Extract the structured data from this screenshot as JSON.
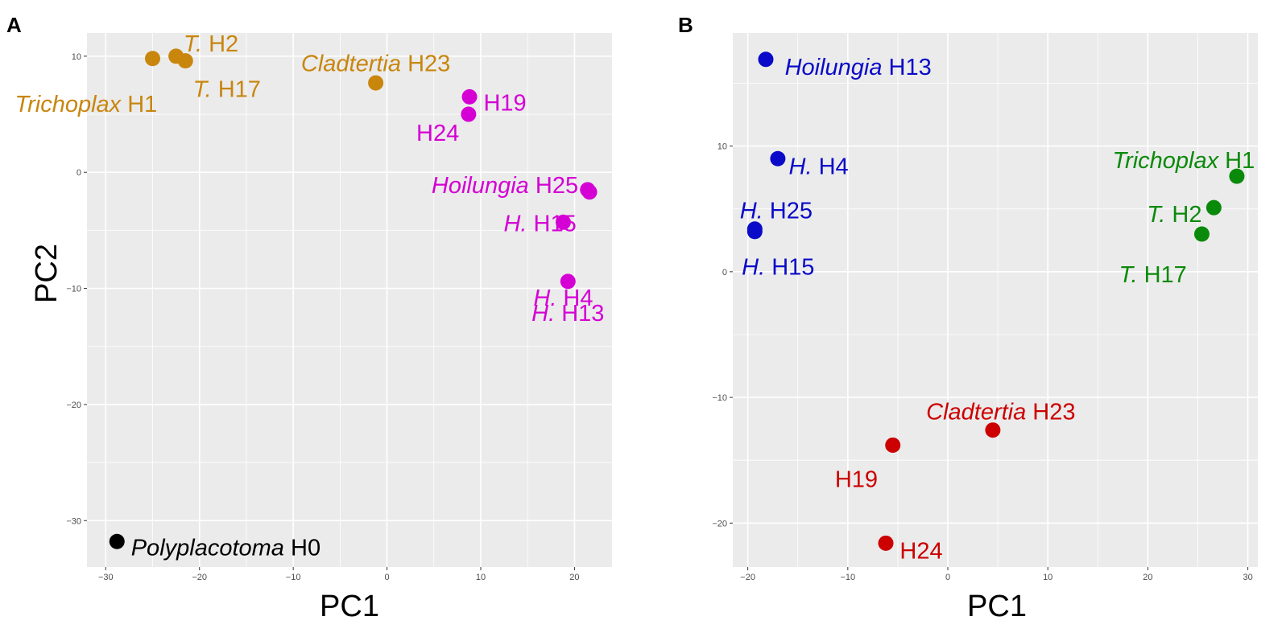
{
  "chart_data": [
    {
      "panel": "A",
      "type": "scatter",
      "xlabel": "PC1",
      "ylabel": "PC2",
      "xlim": [
        -32,
        24
      ],
      "ylim": [
        -34,
        12
      ],
      "xticks": [
        -30,
        -20,
        -10,
        0,
        10,
        20
      ],
      "yticks": [
        -30,
        -20,
        -10,
        0,
        10
      ],
      "points": [
        {
          "x": -25.0,
          "y": 9.8,
          "color": "#c8860d",
          "italic": "Trichoplax",
          "plain": "H1",
          "anchor": "end",
          "dx": 0.5,
          "dy": -3.9
        },
        {
          "x": -22.5,
          "y": 10.0,
          "color": "#c8860d",
          "italic": "T.",
          "plain": "H2",
          "anchor": "start",
          "dx": 0.8,
          "dy": 1.1
        },
        {
          "x": -21.5,
          "y": 9.6,
          "color": "#c8860d",
          "italic": "T.",
          "plain": "H17",
          "anchor": "start",
          "dx": 0.8,
          "dy": -2.4
        },
        {
          "x": -1.2,
          "y": 7.7,
          "color": "#c8860d",
          "italic": "Cladtertia",
          "plain": "H23",
          "anchor": "middle",
          "dx": 0,
          "dy": 1.7
        },
        {
          "x": 8.8,
          "y": 6.5,
          "color": "#d400d4",
          "italic": "",
          "plain": "H19",
          "anchor": "start",
          "dx": 1.5,
          "dy": -0.5
        },
        {
          "x": 8.7,
          "y": 5.0,
          "color": "#d400d4",
          "italic": "",
          "plain": "H24",
          "anchor": "end",
          "dx": -1.0,
          "dy": -1.6
        },
        {
          "x": 21.6,
          "y": -1.7,
          "color": "#d400d4",
          "italic": "Hoilungia",
          "plain": "H25",
          "anchor": "end",
          "dx": -1.2,
          "dy": 0.6
        },
        {
          "x": 21.4,
          "y": -1.5,
          "color": "#d400d4",
          "italic": "H.",
          "plain": "H15",
          "anchor": "end",
          "dx": -1.2,
          "dy": -2.9
        },
        {
          "x": 18.8,
          "y": -4.3,
          "color": "#d400d4",
          "italic": "H.",
          "plain": "H4",
          "anchor": "middle",
          "dx": 0,
          "dy": -6.5
        },
        {
          "x": 19.3,
          "y": -9.4,
          "color": "#d400d4",
          "italic": "H.",
          "plain": "H13",
          "anchor": "middle",
          "dx": 0,
          "dy": -2.7
        },
        {
          "x": -28.8,
          "y": -31.8,
          "color": "#000000",
          "italic": "Polyplacotoma",
          "plain": "H0",
          "anchor": "start",
          "dx": 1.5,
          "dy": -0.5
        }
      ]
    },
    {
      "panel": "B",
      "type": "scatter",
      "xlabel": "PC1",
      "ylabel": "",
      "xlim": [
        -21.5,
        31
      ],
      "ylim": [
        -23.5,
        19
      ],
      "xticks": [
        -20,
        -10,
        0,
        10,
        20,
        30
      ],
      "yticks": [
        -20,
        -10,
        0,
        10
      ],
      "points": [
        {
          "x": -18.2,
          "y": 16.9,
          "color": "#0a0ac8",
          "italic": "Hoilungia",
          "plain": "H13",
          "anchor": "start",
          "dx": 1.9,
          "dy": -0.6
        },
        {
          "x": -17.0,
          "y": 9.0,
          "color": "#0a0ac8",
          "italic": "H.",
          "plain": "H4",
          "anchor": "start",
          "dx": 1.1,
          "dy": -0.6
        },
        {
          "x": -19.3,
          "y": 3.4,
          "color": "#0a0ac8",
          "italic": "H.",
          "plain": "H25",
          "anchor": "start",
          "dx": -1.5,
          "dy": 1.5
        },
        {
          "x": -19.3,
          "y": 3.2,
          "color": "#0a0ac8",
          "italic": "H.",
          "plain": "H15",
          "anchor": "start",
          "dx": -1.3,
          "dy": -2.8
        },
        {
          "x": 28.9,
          "y": 7.6,
          "color": "#0a8a0a",
          "italic": "Trichoplax",
          "plain": "H1",
          "anchor": "end",
          "dx": 1.8,
          "dy": 1.3
        },
        {
          "x": 26.6,
          "y": 5.1,
          "color": "#0a8a0a",
          "italic": "T.",
          "plain": "H2",
          "anchor": "end",
          "dx": -1.2,
          "dy": -0.5
        },
        {
          "x": 25.4,
          "y": 3.0,
          "color": "#0a8a0a",
          "italic": "T.",
          "plain": "H17",
          "anchor": "end",
          "dx": -1.5,
          "dy": -3.2
        },
        {
          "x": 4.5,
          "y": -12.6,
          "color": "#cc0000",
          "italic": "Cladtertia",
          "plain": "H23",
          "anchor": "middle",
          "dx": 0.8,
          "dy": 1.5
        },
        {
          "x": -5.5,
          "y": -13.8,
          "color": "#cc0000",
          "italic": "",
          "plain": "H19",
          "anchor": "end",
          "dx": -1.5,
          "dy": -2.7
        },
        {
          "x": -6.2,
          "y": -21.6,
          "color": "#cc0000",
          "italic": "",
          "plain": "H24",
          "anchor": "start",
          "dx": 1.4,
          "dy": -0.6
        }
      ]
    }
  ]
}
